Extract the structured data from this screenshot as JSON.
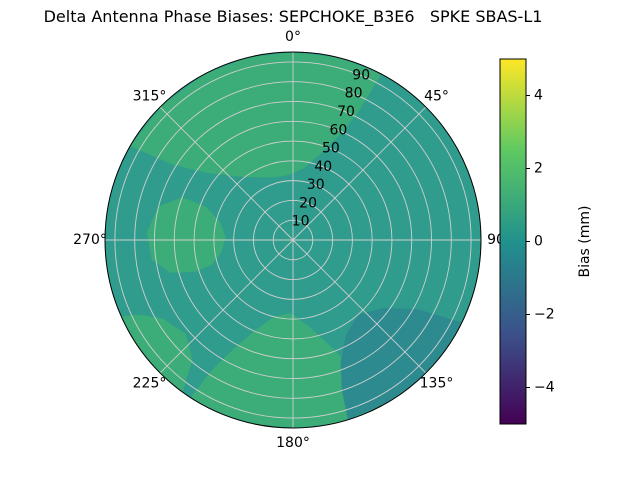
{
  "title": "Delta Antenna Phase Biases: SEPCHOKE_B3E6   SPKE SBAS-L1",
  "chart_data": {
    "type": "heatmap",
    "projection": "polar",
    "theta_zero_location": "top",
    "theta_direction": "clockwise",
    "angular_ticks": [
      {
        "angle": 0,
        "label": "0°"
      },
      {
        "angle": 45,
        "label": "45°"
      },
      {
        "angle": 90,
        "label": "90"
      },
      {
        "angle": 135,
        "label": "135°"
      },
      {
        "angle": 180,
        "label": "180°"
      },
      {
        "angle": 225,
        "label": "225°"
      },
      {
        "angle": 270,
        "label": "270°"
      },
      {
        "angle": 315,
        "label": "315°"
      }
    ],
    "radial_ticks": [
      10,
      20,
      30,
      40,
      50,
      60,
      70,
      80,
      90
    ],
    "radial_tick_angle_deg": 22.5,
    "r_max": 95,
    "grid_color": "#cfcfcf",
    "colorbar": {
      "label": "Bias (mm)",
      "min": -5,
      "max": 5,
      "colormap": "viridis",
      "ticks": [
        {
          "value": 4,
          "label": "4"
        },
        {
          "value": 2,
          "label": "2"
        },
        {
          "value": 0,
          "label": "0"
        },
        {
          "value": -2,
          "label": "−2"
        },
        {
          "value": -4,
          "label": "−4"
        }
      ],
      "stops": [
        {
          "offset": 0,
          "color": "#440154"
        },
        {
          "offset": 0.25,
          "color": "#3b528b"
        },
        {
          "offset": 0.5,
          "color": "#21918c"
        },
        {
          "offset": 0.75,
          "color": "#5ec962"
        },
        {
          "offset": 1,
          "color": "#fde725"
        }
      ]
    },
    "field": {
      "base_bias": 0.3,
      "base_color": "#2f9c8d",
      "regions": [
        {
          "name": "top-green-patch",
          "bias": 1.5,
          "color": "#3cad78",
          "points": [
            [
              300,
              95
            ],
            [
              302,
              72
            ],
            [
              308,
              55
            ],
            [
              317,
              44
            ],
            [
              329,
              37
            ],
            [
              343,
              33
            ],
            [
              357,
              33
            ],
            [
              9,
              37
            ],
            [
              18,
              46
            ],
            [
              24,
              58
            ],
            [
              27,
              72
            ],
            [
              28,
              95
            ],
            [
              14,
              95
            ],
            [
              0,
              95
            ],
            [
              346,
              95
            ],
            [
              332,
              95
            ],
            [
              316,
              95
            ]
          ]
        },
        {
          "name": "left-green-patch",
          "bias": 1.5,
          "color": "#3cad78",
          "points": [
            [
              252,
              52
            ],
            [
              255,
              64
            ],
            [
              262,
              72
            ],
            [
              273,
              74
            ],
            [
              284,
              70
            ],
            [
              291,
              60
            ],
            [
              291,
              47
            ],
            [
              284,
              38
            ],
            [
              272,
              34
            ],
            [
              260,
              37
            ],
            [
              253,
              43
            ]
          ]
        },
        {
          "name": "bottom-green-patch",
          "bias": 1.5,
          "color": "#3cad78",
          "points": [
            [
              152,
              95
            ],
            [
              154,
              76
            ],
            [
              160,
              58
            ],
            [
              170,
              44
            ],
            [
              182,
              37
            ],
            [
              194,
              40
            ],
            [
              203,
              50
            ],
            [
              209,
              64
            ],
            [
              212,
              78
            ],
            [
              213,
              95
            ],
            [
              203,
              95
            ],
            [
              191,
              95
            ],
            [
              179,
              95
            ],
            [
              167,
              95
            ],
            [
              159,
              95
            ]
          ]
        },
        {
          "name": "bottom-left-green-band",
          "bias": 1.5,
          "color": "#3cad78",
          "points": [
            [
              216,
              95
            ],
            [
              220,
              79
            ],
            [
              229,
              72
            ],
            [
              239,
              77
            ],
            [
              244,
              86
            ],
            [
              246,
              95
            ],
            [
              236,
              95
            ],
            [
              226,
              95
            ]
          ]
        },
        {
          "name": "bottom-right-dark-patch",
          "bias": -0.5,
          "color": "#2d8b90",
          "points": [
            [
              116,
              95
            ],
            [
              119,
              72
            ],
            [
              127,
              57
            ],
            [
              139,
              50
            ],
            [
              151,
              55
            ],
            [
              159,
              67
            ],
            [
              162,
              80
            ],
            [
              163,
              95
            ],
            [
              151,
              95
            ],
            [
              139,
              95
            ],
            [
              127,
              95
            ]
          ]
        }
      ]
    }
  }
}
